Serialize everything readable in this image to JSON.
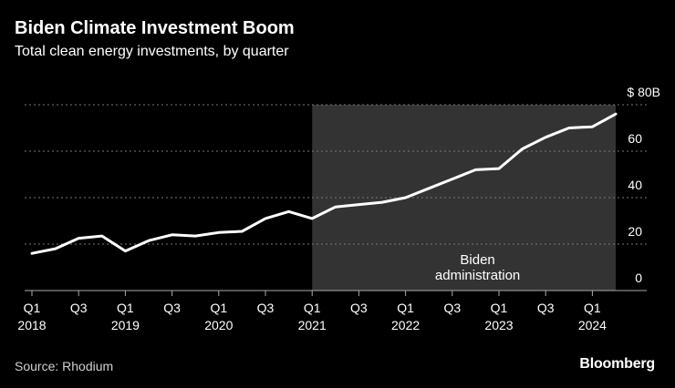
{
  "header": {
    "title": "Biden Climate Investment Boom",
    "subtitle": "Total clean energy investments, by quarter"
  },
  "footer": {
    "source": "Source: Rhodium",
    "brand": "Bloomberg"
  },
  "colors": {
    "background": "#000000",
    "line": "#ffffff",
    "shade": "#333333",
    "grid": "#777777",
    "text": "#ffffff"
  },
  "chart_data": {
    "type": "line",
    "title": "Biden Climate Investment Boom",
    "subtitle": "Total clean energy investments, by quarter",
    "xlabel": "",
    "ylabel": "",
    "ylim": [
      0,
      80
    ],
    "grid": true,
    "y_axis_side": "right",
    "y_ticks": [
      {
        "value": 80,
        "label": "$ 80B"
      },
      {
        "value": 60,
        "label": "60"
      },
      {
        "value": 40,
        "label": "40"
      },
      {
        "value": 20,
        "label": "20"
      },
      {
        "value": 0,
        "label": "0"
      }
    ],
    "x_ticks": [
      {
        "index": 0,
        "q": "Q1",
        "year": "2018"
      },
      {
        "index": 2,
        "q": "Q3",
        "year": ""
      },
      {
        "index": 4,
        "q": "Q1",
        "year": "2019"
      },
      {
        "index": 6,
        "q": "Q3",
        "year": ""
      },
      {
        "index": 8,
        "q": "Q1",
        "year": "2020"
      },
      {
        "index": 10,
        "q": "Q3",
        "year": ""
      },
      {
        "index": 12,
        "q": "Q1",
        "year": "2021"
      },
      {
        "index": 14,
        "q": "Q3",
        "year": ""
      },
      {
        "index": 16,
        "q": "Q1",
        "year": "2022"
      },
      {
        "index": 18,
        "q": "Q3",
        "year": ""
      },
      {
        "index": 20,
        "q": "Q1",
        "year": "2023"
      },
      {
        "index": 22,
        "q": "Q3",
        "year": ""
      },
      {
        "index": 24,
        "q": "Q1",
        "year": "2024"
      }
    ],
    "x": [
      "2018 Q1",
      "2018 Q2",
      "2018 Q3",
      "2018 Q4",
      "2019 Q1",
      "2019 Q2",
      "2019 Q3",
      "2019 Q4",
      "2020 Q1",
      "2020 Q2",
      "2020 Q3",
      "2020 Q4",
      "2021 Q1",
      "2021 Q2",
      "2021 Q3",
      "2021 Q4",
      "2022 Q1",
      "2022 Q2",
      "2022 Q3",
      "2022 Q4",
      "2023 Q1",
      "2023 Q2",
      "2023 Q3",
      "2023 Q4",
      "2024 Q1",
      "2024 Q2"
    ],
    "series": [
      {
        "values": [
          16,
          18,
          22.5,
          23.5,
          17,
          21.5,
          24,
          23.5,
          25,
          25.5,
          31,
          34,
          31,
          36,
          37,
          38,
          40,
          44,
          48,
          52,
          52.5,
          61,
          66,
          70,
          70.5,
          76
        ]
      }
    ],
    "annotations": [
      {
        "text_lines": [
          "Biden",
          "administration"
        ],
        "shade_from_index": 12,
        "shade_to_index": 25
      }
    ]
  }
}
